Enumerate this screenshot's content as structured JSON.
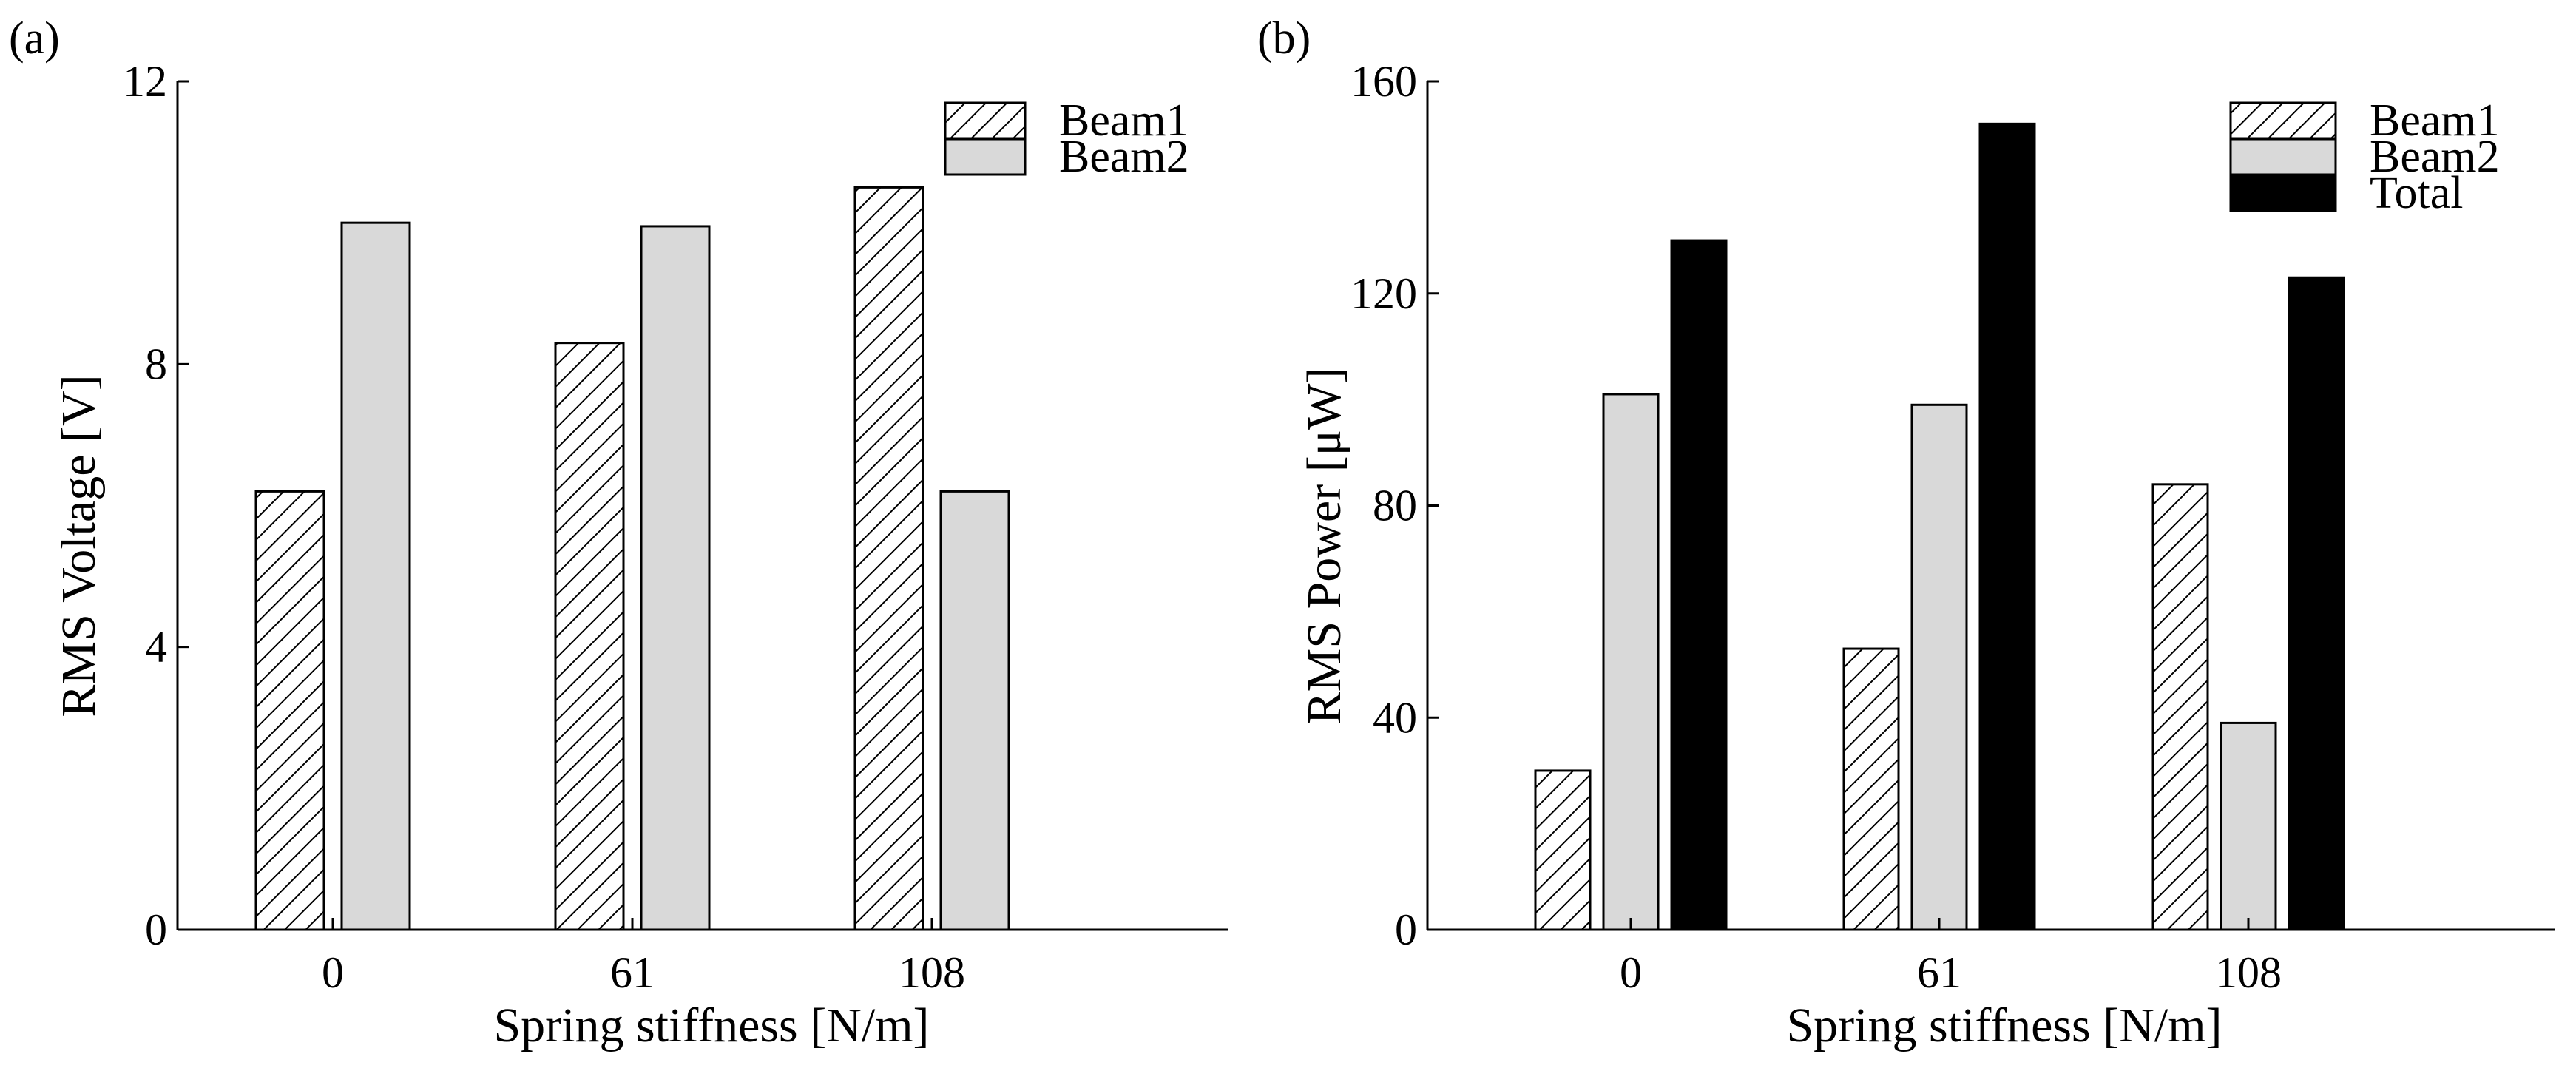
{
  "figure": {
    "colors": {
      "beam1_fill": "#ffffff",
      "beam1_hatch": "#000000",
      "beam2_fill": "#d9d9d9",
      "total_fill": "#000000",
      "axis": "#000000"
    }
  },
  "chart_data": [
    {
      "panel_label": "(a)",
      "type": "bar",
      "title": "",
      "xlabel": "Spring stiffness [N/m]",
      "ylabel": "RMS Voltage [V]",
      "categories": [
        "0",
        "61",
        "108"
      ],
      "ylim": [
        0,
        12
      ],
      "yticks": [
        0,
        4,
        8,
        12
      ],
      "ytick_labels": [
        "0",
        "4",
        "8",
        "12"
      ],
      "legend_position": "top-right",
      "series": [
        {
          "name": "Beam1",
          "style": "hatched",
          "values": [
            6.2,
            8.3,
            10.5
          ]
        },
        {
          "name": "Beam2",
          "style": "gray",
          "values": [
            10.0,
            9.95,
            6.2
          ]
        }
      ]
    },
    {
      "panel_label": "(b)",
      "type": "bar",
      "title": "",
      "xlabel": "Spring stiffness [N/m]",
      "ylabel": "RMS Power [μW]",
      "categories": [
        "0",
        "61",
        "108"
      ],
      "ylim": [
        0,
        160
      ],
      "yticks": [
        0,
        40,
        80,
        120,
        160
      ],
      "ytick_labels": [
        "0",
        "40",
        "80",
        "120",
        "160"
      ],
      "legend_position": "top-right",
      "series": [
        {
          "name": "Beam1",
          "style": "hatched",
          "values": [
            30,
            53,
            84
          ]
        },
        {
          "name": "Beam2",
          "style": "gray",
          "values": [
            101,
            99,
            39
          ]
        },
        {
          "name": "Total",
          "style": "black",
          "values": [
            130,
            152,
            123
          ]
        }
      ]
    }
  ]
}
